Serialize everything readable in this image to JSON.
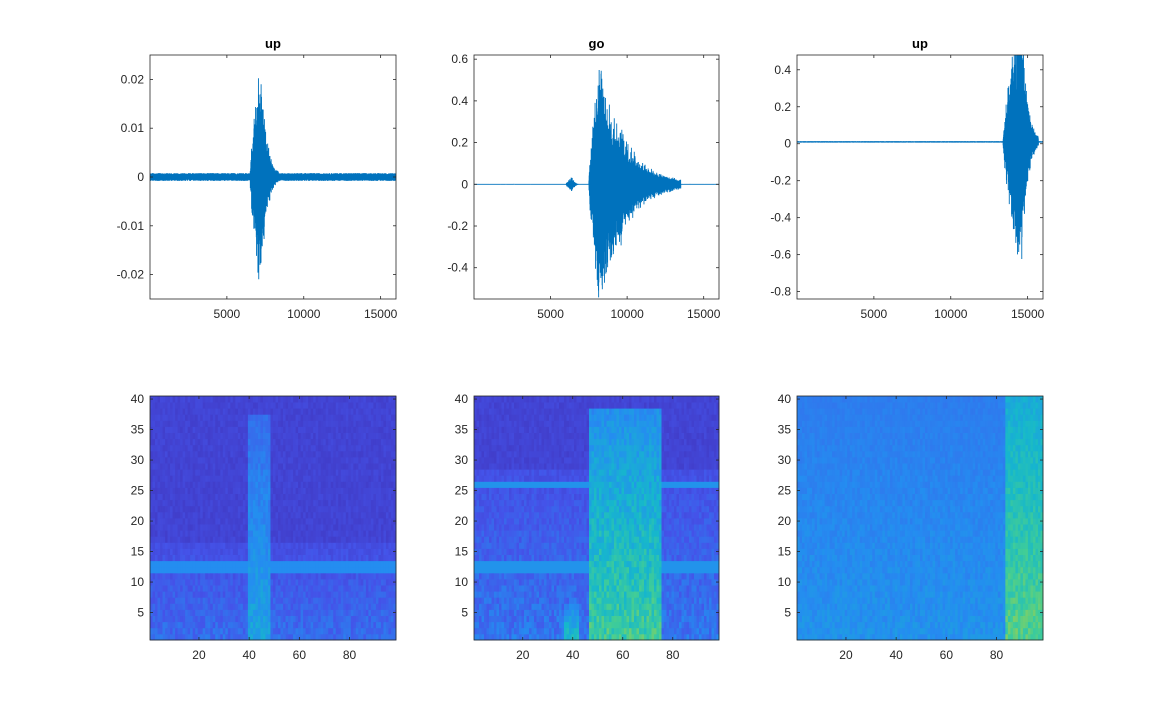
{
  "figure": {
    "background": "#ffffff",
    "axis_color": "#262626",
    "line_color": "#0072bd"
  },
  "chart_data": [
    {
      "type": "line",
      "panel": "waveform-1",
      "title": "up",
      "xlim": [
        0,
        16000
      ],
      "ylim": [
        -0.025,
        0.025
      ],
      "xticks": [
        5000,
        10000,
        15000
      ],
      "xtick_labels": [
        "5000",
        "10000",
        "15000"
      ],
      "yticks": [
        -0.02,
        -0.01,
        0,
        0.01,
        0.02
      ],
      "ytick_labels": [
        "-0.02",
        "-0.01",
        "0",
        "0.01",
        "0.02"
      ],
      "signal": {
        "noise": 0.0008,
        "bursts": [
          {
            "start": 6500,
            "end": 8400,
            "peak": 0.025,
            "peak_at": 7200
          }
        ]
      }
    },
    {
      "type": "line",
      "panel": "waveform-2",
      "title": "go",
      "xlim": [
        0,
        16000
      ],
      "ylim": [
        -0.55,
        0.62
      ],
      "xticks": [
        5000,
        10000,
        15000
      ],
      "xtick_labels": [
        "5000",
        "10000",
        "15000"
      ],
      "yticks": [
        -0.4,
        -0.2,
        0,
        0.2,
        0.4,
        0.6
      ],
      "ytick_labels": [
        "-0.4",
        "-0.2",
        "0",
        "0.2",
        "0.4",
        "0.6"
      ],
      "signal": {
        "noise": 0.002,
        "bursts": [
          {
            "start": 6000,
            "end": 6900,
            "peak": 0.04,
            "peak_at": 6400
          },
          {
            "start": 7500,
            "end": 13500,
            "peak": 0.62,
            "peak_at": 8200
          },
          {
            "start": 8800,
            "end": 11500,
            "peak": 0.33,
            "peak_at": 9600
          }
        ]
      }
    },
    {
      "type": "line",
      "panel": "waveform-3",
      "title": "up",
      "xlim": [
        0,
        16000
      ],
      "ylim": [
        -0.84,
        0.48
      ],
      "xticks": [
        5000,
        10000,
        15000
      ],
      "xtick_labels": [
        "5000",
        "10000",
        "15000"
      ],
      "yticks": [
        -0.8,
        -0.6,
        -0.4,
        -0.2,
        0,
        0.2,
        0.4
      ],
      "ytick_labels": [
        "-0.8",
        "-0.6",
        "-0.4",
        "-0.2",
        "0",
        "0.2",
        "0.4"
      ],
      "signal": {
        "noise": 0.004,
        "offset": 0.01,
        "bursts": [
          {
            "start": 13400,
            "end": 15700,
            "peak": 0.8,
            "peak_at": 14600
          }
        ]
      }
    },
    {
      "type": "heatmap",
      "panel": "spectrogram-1",
      "title": "",
      "cols": 98,
      "rows": 40,
      "xlim": [
        0.5,
        98.5
      ],
      "ylim": [
        0.5,
        40.5
      ],
      "xticks": [
        20,
        40,
        60,
        80
      ],
      "xtick_labels": [
        "20",
        "40",
        "60",
        "80"
      ],
      "yticks": [
        5,
        10,
        15,
        20,
        25,
        30,
        35,
        40
      ],
      "ytick_labels": [
        "5",
        "10",
        "15",
        "20",
        "25",
        "30",
        "35",
        "40"
      ],
      "pattern": {
        "base": 0.08,
        "noise_rows_below": 16,
        "noise_level": 0.14,
        "band_rows": [
          12,
          13
        ],
        "band_level": 0.3,
        "events": [
          {
            "col_start": 40,
            "col_end": 48,
            "level": 0.4,
            "top_row": 37
          }
        ]
      }
    },
    {
      "type": "heatmap",
      "panel": "spectrogram-2",
      "title": "",
      "cols": 98,
      "rows": 40,
      "xlim": [
        0.5,
        98.5
      ],
      "ylim": [
        0.5,
        40.5
      ],
      "xticks": [
        20,
        40,
        60,
        80
      ],
      "xtick_labels": [
        "20",
        "40",
        "60",
        "80"
      ],
      "yticks": [
        5,
        10,
        15,
        20,
        25,
        30,
        35,
        40
      ],
      "ytick_labels": [
        "5",
        "10",
        "15",
        "20",
        "25",
        "30",
        "35",
        "40"
      ],
      "pattern": {
        "base": 0.08,
        "noise_rows_below": 28,
        "noise_level": 0.16,
        "band_rows": [
          12,
          13,
          26
        ],
        "band_level": 0.32,
        "events": [
          {
            "col_start": 47,
            "col_end": 75,
            "level": 0.62,
            "top_row": 38
          },
          {
            "col_start": 37,
            "col_end": 42,
            "level": 0.5,
            "top_row": 6
          }
        ]
      }
    },
    {
      "type": "heatmap",
      "panel": "spectrogram-3",
      "title": "",
      "cols": 98,
      "rows": 40,
      "xlim": [
        0.5,
        98.5
      ],
      "ylim": [
        0.5,
        40.5
      ],
      "xticks": [
        20,
        40,
        60,
        80
      ],
      "xtick_labels": [
        "20",
        "40",
        "60",
        "80"
      ],
      "yticks": [
        5,
        10,
        15,
        20,
        25,
        30,
        35,
        40
      ],
      "ytick_labels": [
        "5",
        "10",
        "15",
        "20",
        "25",
        "30",
        "35",
        "40"
      ],
      "pattern": {
        "base": 0.22,
        "noise_rows_below": 40,
        "noise_level": 0.1,
        "band_rows": [],
        "band_level": 0,
        "events": [
          {
            "col_start": 84,
            "col_end": 98,
            "level": 0.66,
            "top_row": 40
          }
        ]
      }
    }
  ]
}
